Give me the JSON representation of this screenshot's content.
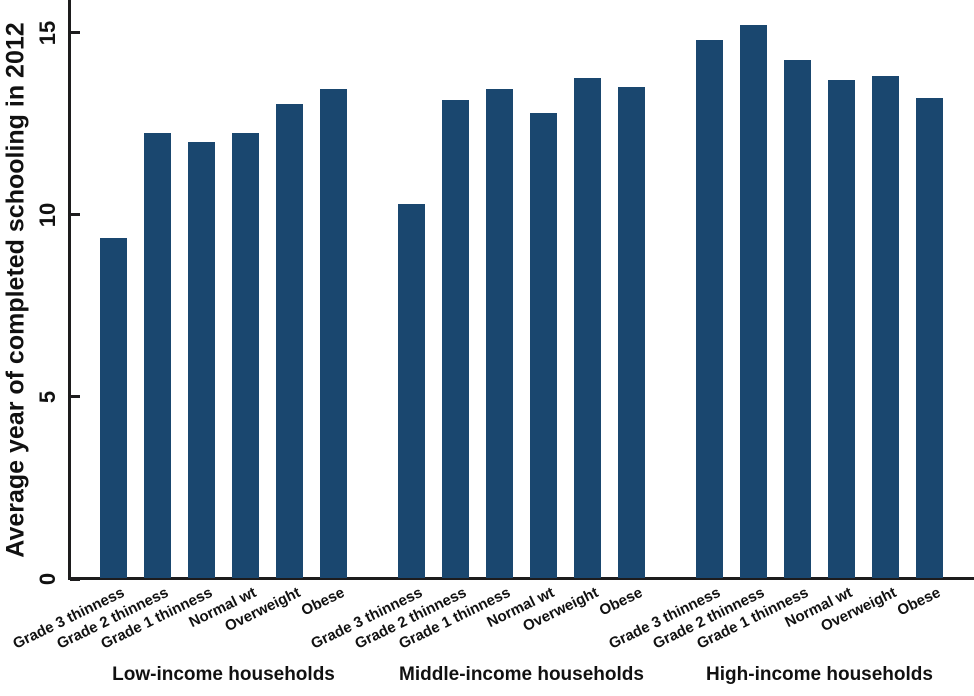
{
  "chart_data": {
    "type": "bar",
    "title": "",
    "xlabel": "",
    "ylabel": "Average year of completed schooling in 2012",
    "ylim": [
      0,
      15.9
    ],
    "yticks": [
      0,
      5,
      10,
      15
    ],
    "grid": false,
    "legend": "none",
    "bar_color": "#1a476f",
    "axis_color": "#1d1c1d",
    "text_color": "#111111",
    "categories": [
      "Grade 3 thinness",
      "Grade 2 thinness",
      "Grade 1 thinness",
      "Normal wt",
      "Overweight",
      "Obese"
    ],
    "series": [
      {
        "name": "Low-income households",
        "values": [
          9.35,
          12.25,
          12.0,
          12.25,
          13.05,
          13.45
        ]
      },
      {
        "name": "Middle-income households",
        "values": [
          10.3,
          13.15,
          13.45,
          12.8,
          13.75,
          13.5
        ]
      },
      {
        "name": "High-income households",
        "values": [
          14.8,
          15.2,
          14.25,
          13.7,
          13.8,
          13.2
        ]
      }
    ]
  }
}
